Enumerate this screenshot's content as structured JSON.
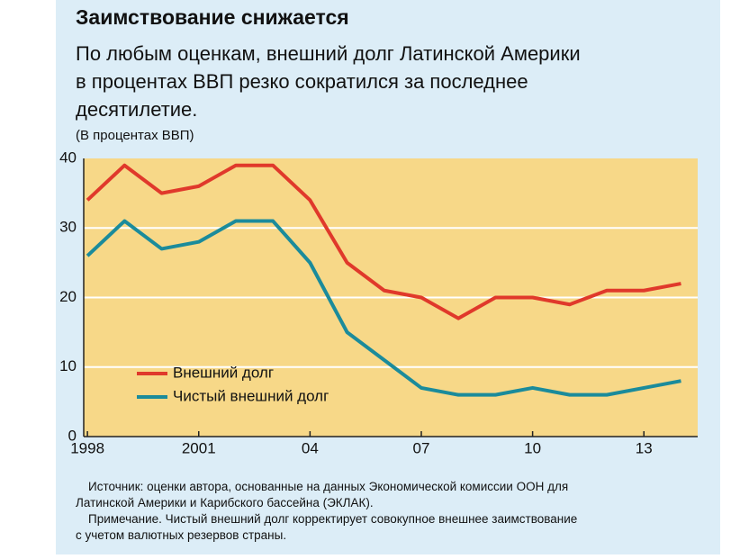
{
  "chart_data": {
    "type": "line",
    "title": "Заимствование снижается",
    "subtitle": [
      "По любым оценкам, внешний долг Латинской Америки",
      "в процентах ВВП резко сократился за последнее",
      "десятилетие."
    ],
    "y_axis_label": "(В процентах ВВП)",
    "x": [
      1998,
      1999,
      2000,
      2001,
      2002,
      2003,
      2004,
      2005,
      2006,
      2007,
      2008,
      2009,
      2010,
      2011,
      2012,
      2013,
      2014
    ],
    "series": [
      {
        "name": "Внешний долг",
        "color": "#e0392b",
        "values": [
          34,
          39,
          35,
          36,
          39,
          39,
          34,
          25,
          21,
          20,
          17,
          20,
          20,
          19,
          21,
          21,
          22
        ]
      },
      {
        "name": "Чистый внешний долг",
        "color": "#1b8b9b",
        "values": [
          26,
          31,
          27,
          28,
          31,
          31,
          25,
          15,
          11,
          7,
          6,
          6,
          7,
          6,
          6,
          7,
          8
        ]
      }
    ],
    "xlim": [
      1997.9,
      2014.45
    ],
    "xticks": [
      1998,
      2001,
      {
        "value": 2004,
        "label": "04"
      },
      {
        "value": 2007,
        "label": "07"
      },
      {
        "value": 2010,
        "label": "10"
      },
      {
        "value": 2013,
        "label": "13"
      }
    ],
    "ylim": [
      0,
      40
    ],
    "yticks": [
      0,
      10,
      20,
      30,
      40
    ],
    "grid": true,
    "legend": "lower-left",
    "source": [
      "Источник: оценки автора, основанные на данных Экономической комиссии ООН для",
      "Латинской Америки и Карибского бассейна (ЭКЛАК)."
    ],
    "note": [
      "Примечание. Чистый внешний долг корректирует совокупное внешнее заимствование",
      "с учетом валютных резервов страны."
    ]
  }
}
